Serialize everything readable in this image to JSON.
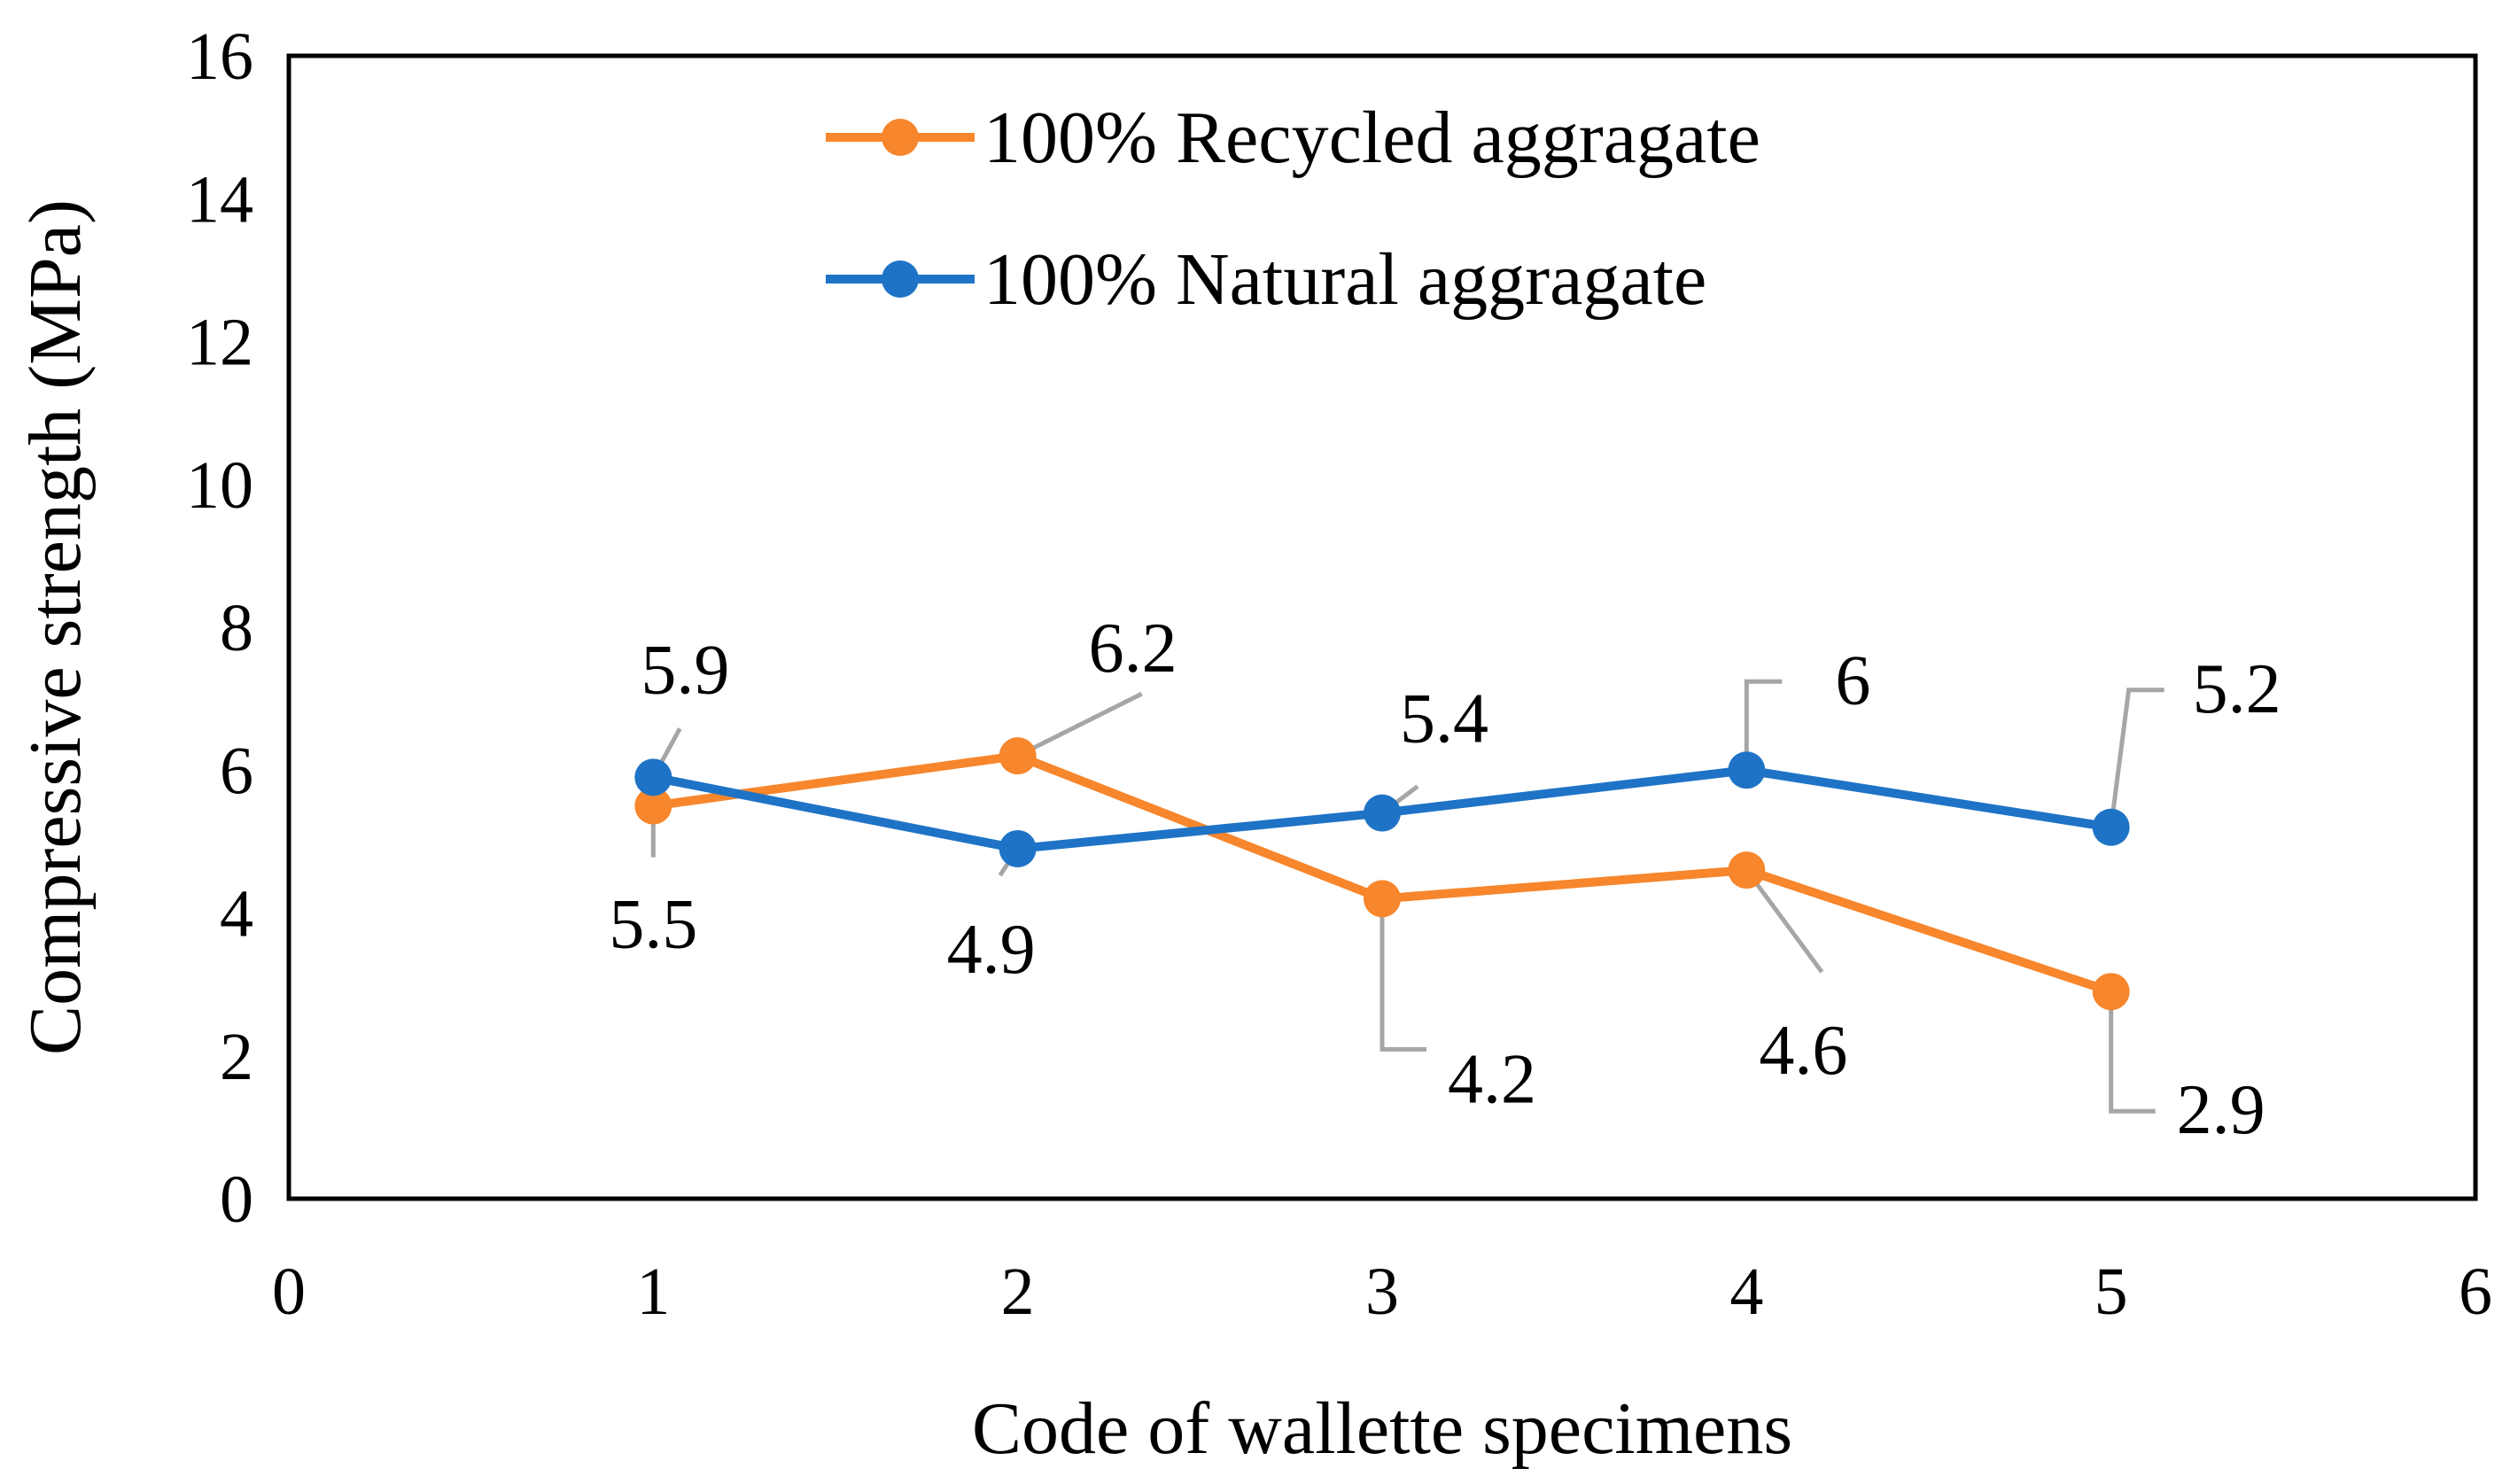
{
  "chart_data": {
    "type": "line",
    "title": "",
    "xlabel": "Code of wallette specimens",
    "ylabel": "Compressive strength (MPa)",
    "xlim": [
      0,
      6
    ],
    "ylim": [
      0,
      16
    ],
    "xticks": [
      0,
      1,
      2,
      3,
      4,
      5,
      6
    ],
    "yticks": [
      0,
      2,
      4,
      6,
      8,
      10,
      12,
      14,
      16
    ],
    "grid": false,
    "legend_position": "top-center",
    "x": [
      1,
      2,
      3,
      4,
      5
    ],
    "series": [
      {
        "name": "100% Recycled aggragate",
        "color": "#F7862C",
        "values": [
          5.5,
          6.2,
          4.2,
          4.6,
          2.9
        ],
        "labels": [
          "5.5",
          "6.2",
          "4.2",
          "4.6",
          "2.9"
        ]
      },
      {
        "name": "100% Natural aggragate",
        "color": "#1F73C6",
        "values": [
          5.9,
          4.9,
          5.4,
          6,
          5.2
        ],
        "labels": [
          "5.9",
          "4.9",
          "5.4",
          "6",
          "5.2"
        ]
      }
    ],
    "leader_line_color": "#A6A6A6"
  }
}
